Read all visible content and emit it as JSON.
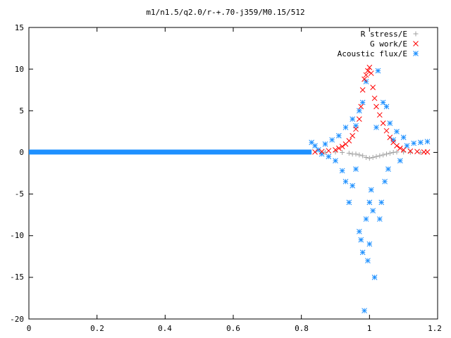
{
  "chart_data": {
    "type": "scatter",
    "title": "m1/n1.5/q2.0/r-+.70-j359/M0.15/512",
    "xlabel": "",
    "ylabel": "",
    "xlim": [
      0,
      1.2
    ],
    "ylim": [
      -20,
      15
    ],
    "x_ticks": [
      "0",
      "0.2",
      "0.4",
      "0.6",
      "0.8",
      "1",
      "1.2"
    ],
    "y_ticks": [
      "15",
      "10",
      "5",
      "0",
      "-5",
      "-10",
      "-15",
      "-20"
    ],
    "grid": false,
    "legend_position": "top-right",
    "series": [
      {
        "name": "R stress/E",
        "marker": "plus",
        "color": "#a0a0a0",
        "points": [
          [
            0.87,
            0.02
          ],
          [
            0.9,
            0.05
          ],
          [
            0.92,
            0.0
          ],
          [
            0.94,
            -0.1
          ],
          [
            0.95,
            -0.2
          ],
          [
            0.96,
            -0.2
          ],
          [
            0.97,
            -0.3
          ],
          [
            0.98,
            -0.4
          ],
          [
            0.99,
            -0.6
          ],
          [
            1.0,
            -0.7
          ],
          [
            1.01,
            -0.6
          ],
          [
            1.02,
            -0.5
          ],
          [
            1.03,
            -0.4
          ],
          [
            1.04,
            -0.3
          ],
          [
            1.05,
            -0.2
          ],
          [
            1.06,
            -0.1
          ],
          [
            1.07,
            0.0
          ],
          [
            1.08,
            0.05
          ],
          [
            1.1,
            0.05
          ],
          [
            1.12,
            0.02
          ],
          [
            1.15,
            0.0
          ]
        ]
      },
      {
        "name": "G work/E",
        "marker": "cross",
        "color": "#ff0000",
        "points": [
          [
            0.84,
            0.05
          ],
          [
            0.86,
            0.1
          ],
          [
            0.88,
            0.2
          ],
          [
            0.9,
            0.3
          ],
          [
            0.91,
            0.5
          ],
          [
            0.92,
            0.7
          ],
          [
            0.93,
            1.0
          ],
          [
            0.94,
            1.4
          ],
          [
            0.95,
            2.0
          ],
          [
            0.96,
            2.8
          ],
          [
            0.97,
            4.0
          ],
          [
            0.975,
            5.5
          ],
          [
            0.98,
            7.5
          ],
          [
            0.985,
            8.8
          ],
          [
            0.99,
            9.3
          ],
          [
            0.995,
            9.8
          ],
          [
            1.0,
            10.2
          ],
          [
            1.005,
            9.5
          ],
          [
            1.01,
            7.8
          ],
          [
            1.015,
            6.5
          ],
          [
            1.02,
            5.5
          ],
          [
            1.03,
            4.5
          ],
          [
            1.04,
            3.5
          ],
          [
            1.05,
            2.6
          ],
          [
            1.06,
            1.8
          ],
          [
            1.07,
            1.2
          ],
          [
            1.08,
            0.8
          ],
          [
            1.09,
            0.5
          ],
          [
            1.1,
            0.3
          ],
          [
            1.12,
            0.15
          ],
          [
            1.14,
            0.1
          ],
          [
            1.16,
            0.05
          ],
          [
            1.17,
            0.05
          ]
        ]
      },
      {
        "name": "Acoustic flux/E",
        "marker": "star",
        "color": "#1e90ff",
        "points": [
          [
            0.83,
            1.2
          ],
          [
            0.84,
            0.8
          ],
          [
            0.85,
            0.3
          ],
          [
            0.86,
            -0.2
          ],
          [
            0.87,
            1.0
          ],
          [
            0.88,
            -0.5
          ],
          [
            0.89,
            1.5
          ],
          [
            0.9,
            -1.0
          ],
          [
            0.91,
            2.0
          ],
          [
            0.92,
            -2.2
          ],
          [
            0.93,
            3.0
          ],
          [
            0.93,
            -3.5
          ],
          [
            0.94,
            -6.0
          ],
          [
            0.95,
            4.0
          ],
          [
            0.95,
            -4.0
          ],
          [
            0.96,
            -2.0
          ],
          [
            0.96,
            3.2
          ],
          [
            0.97,
            5.0
          ],
          [
            0.97,
            -9.5
          ],
          [
            0.975,
            -10.5
          ],
          [
            0.98,
            6.0
          ],
          [
            0.98,
            -12.0
          ],
          [
            0.985,
            -19.0
          ],
          [
            0.99,
            8.5
          ],
          [
            0.99,
            -8.0
          ],
          [
            0.995,
            -13.0
          ],
          [
            1.0,
            -6.0
          ],
          [
            1.0,
            -11.0
          ],
          [
            1.005,
            -4.5
          ],
          [
            1.01,
            -7.0
          ],
          [
            1.015,
            -15.0
          ],
          [
            1.02,
            3.0
          ],
          [
            1.025,
            9.8
          ],
          [
            1.03,
            -8.0
          ],
          [
            1.035,
            -6.0
          ],
          [
            1.04,
            6.0
          ],
          [
            1.045,
            -3.5
          ],
          [
            1.05,
            5.5
          ],
          [
            1.055,
            -2.0
          ],
          [
            1.06,
            3.5
          ],
          [
            1.07,
            1.5
          ],
          [
            1.08,
            2.5
          ],
          [
            1.09,
            -1.0
          ],
          [
            1.1,
            1.8
          ],
          [
            1.11,
            0.8
          ],
          [
            1.13,
            1.1
          ],
          [
            1.15,
            1.2
          ],
          [
            1.17,
            1.3
          ]
        ]
      }
    ]
  }
}
